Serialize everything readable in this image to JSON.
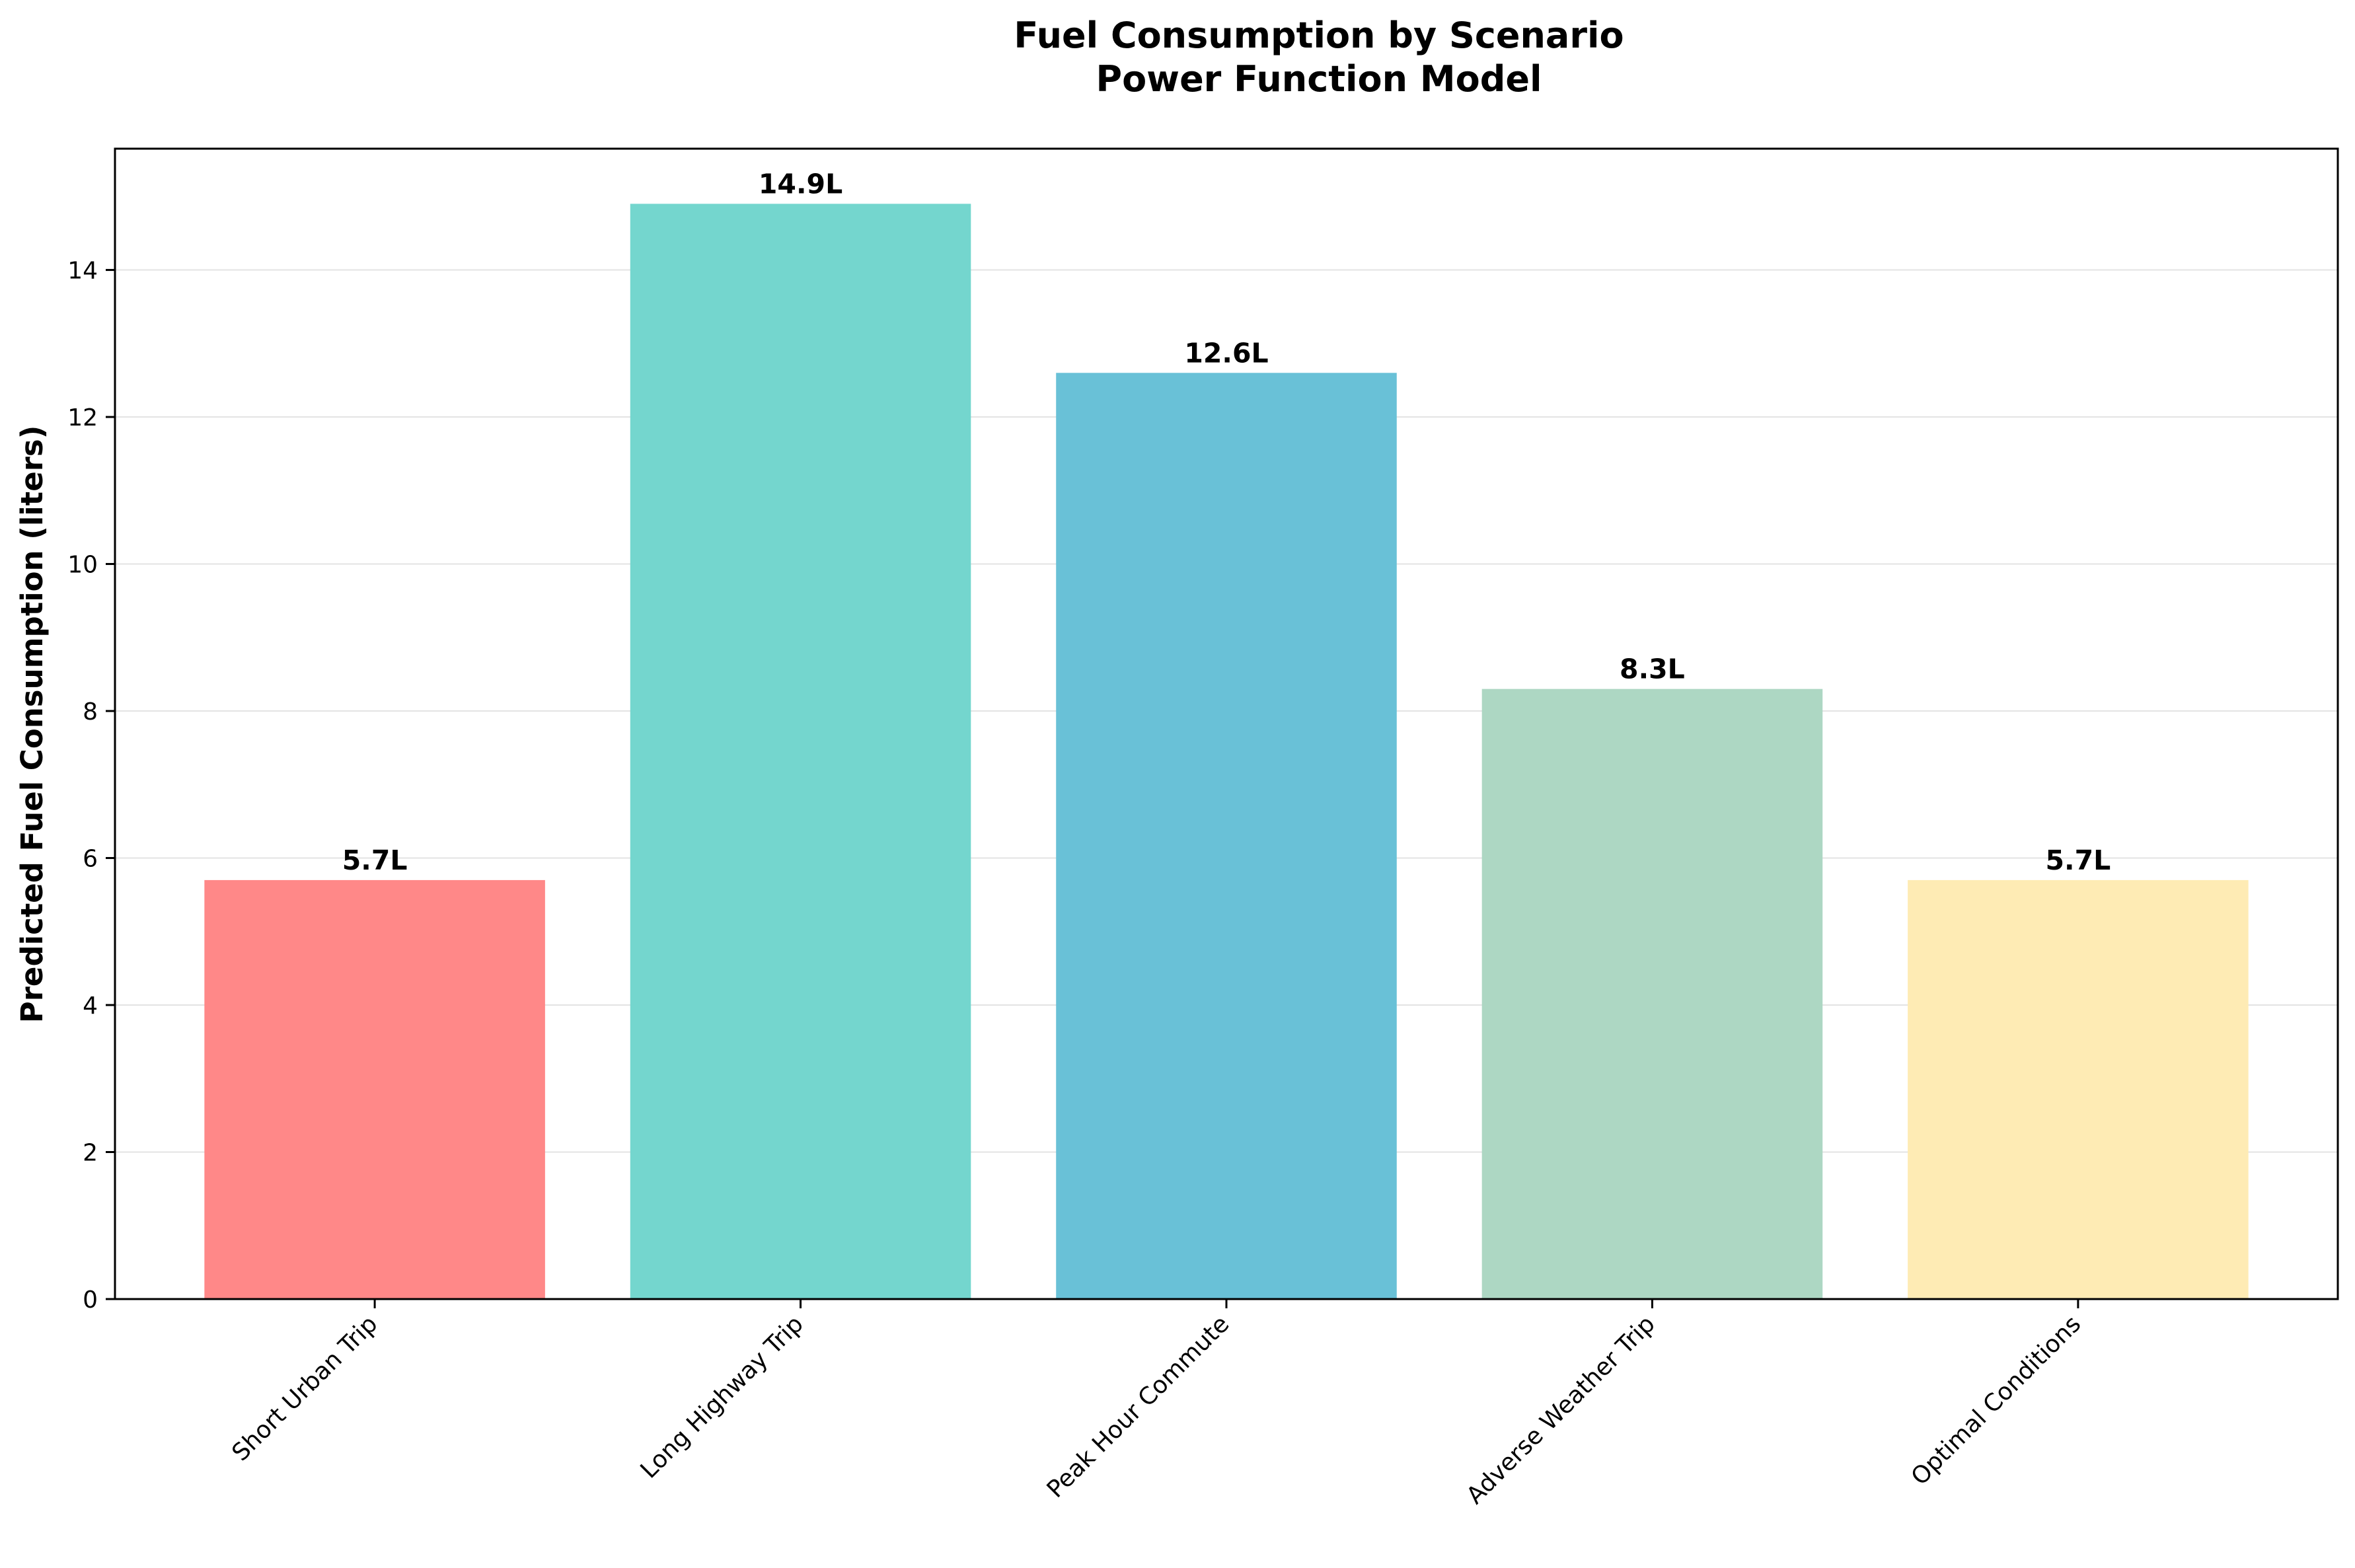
{
  "chart_data": {
    "type": "bar",
    "title": "Fuel Consumption by Scenario",
    "subtitle": "Power Function Model",
    "xlabel": "",
    "ylabel": "Predicted Fuel Consumption (liters)",
    "categories": [
      "Short Urban Trip",
      "Long Highway Trip",
      "Peak Hour Commute",
      "Adverse Weather Trip",
      "Optimal Conditions"
    ],
    "values": [
      5.7,
      14.9,
      12.6,
      8.3,
      5.7
    ],
    "data_labels": [
      "5.7L",
      "14.9L",
      "12.6L",
      "8.3L",
      "5.7L"
    ],
    "colors": [
      "#FF8888",
      "#74D6CE",
      "#69C1D7",
      "#ADD7C3",
      "#FEEBB4"
    ],
    "ylim": [
      0,
      15.65
    ],
    "yticks": [
      0,
      2,
      4,
      6,
      8,
      10,
      12,
      14
    ],
    "ytick_labels": [
      "0",
      "2",
      "4",
      "6",
      "8",
      "10",
      "12",
      "14"
    ],
    "grid": "y",
    "grid_color": "#e3e3e3",
    "legend": "none"
  }
}
